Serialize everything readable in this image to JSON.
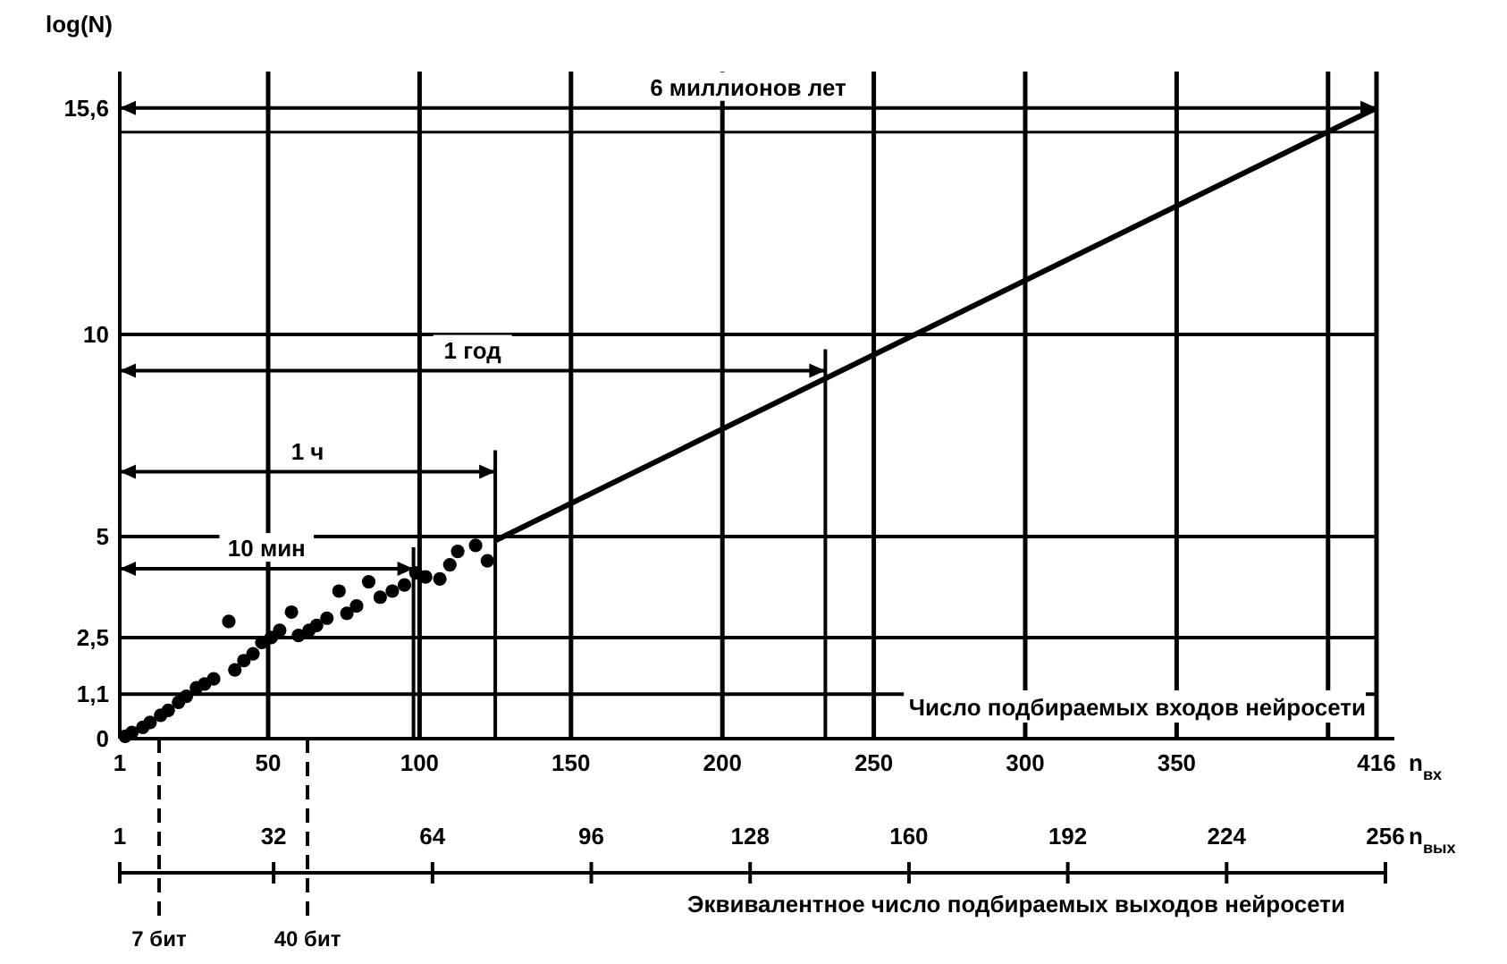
{
  "chart_data": {
    "type": "scatter",
    "ylabel": "log(N)",
    "xlabel": "n$_{вх}$",
    "x2label": "n$_{вых}$",
    "xlim": [
      1,
      416
    ],
    "xticks": [
      1,
      50,
      100,
      150,
      200,
      250,
      300,
      350,
      {
        "value": 400,
        "label": null
      },
      416
    ],
    "x2lim": [
      1,
      256
    ],
    "x2ticks": [
      1,
      32,
      64,
      96,
      128,
      160,
      192,
      224,
      256
    ],
    "ylim": [
      0,
      16.5
    ],
    "yticks": [
      0,
      {
        "value": 1.1,
        "label": "1,1"
      },
      {
        "value": 2.5,
        "label": "2,5"
      },
      5,
      10,
      {
        "value": 15.6,
        "label": "15,6"
      }
    ],
    "grid": true,
    "marker": "circle",
    "series": [
      {
        "color": "#000000",
        "x": [
          2.8,
          5,
          8.6,
          11,
          14.5,
          17,
          20.4,
          23,
          26.3,
          29,
          32,
          37,
          39,
          42,
          45,
          47.9,
          51,
          53.8,
          57.7,
          60,
          63.5,
          66,
          69.4,
          73.4,
          76,
          79.2,
          83.2,
          87,
          91,
          95,
          98.8,
          102,
          106.7,
          110,
          112.6,
          118.5,
          122.4
        ],
        "values": [
          0.06,
          0.15,
          0.28,
          0.4,
          0.58,
          0.7,
          0.9,
          1.05,
          1.26,
          1.35,
          1.48,
          2.9,
          1.7,
          1.93,
          2.1,
          2.38,
          2.5,
          2.68,
          3.13,
          2.55,
          2.68,
          2.8,
          2.98,
          3.65,
          3.1,
          3.28,
          3.88,
          3.5,
          3.65,
          3.8,
          4.1,
          4.0,
          3.95,
          4.3,
          4.63,
          4.78,
          4.4
        ]
      },
      {
        "type": "line",
        "color": "#000000",
        "marker": "none",
        "x": [
          125,
          416
        ],
        "values": [
          4.9,
          15.6
        ]
      }
    ],
    "annotations": [
      "Число подбираемых входов нейросети",
      "Эквивалентное число подбираемых выходов нейросети"
    ],
    "ref_lines": [
      {
        "axis": "x",
        "value": 14,
        "label": "7 бит",
        "line_style": "dashed"
      },
      {
        "axis": "x",
        "value": 63,
        "label": "40 бит",
        "line_style": "dashed"
      },
      {
        "axis": "x",
        "value": 98
      },
      {
        "axis": "x",
        "value": 125
      },
      {
        "axis": "x",
        "value": 234
      },
      {
        "axis": "y",
        "value": 15
      },
      {
        "axis": "y",
        "value": 4.2,
        "label": "10 мин"
      },
      {
        "axis": "y",
        "value": 6.6,
        "label": "1 ч"
      },
      {
        "axis": "y",
        "value": 9.1,
        "label": "1 год"
      },
      {
        "axis": "y",
        "value": 15.6,
        "label": "6 миллионов лет"
      }
    ]
  }
}
